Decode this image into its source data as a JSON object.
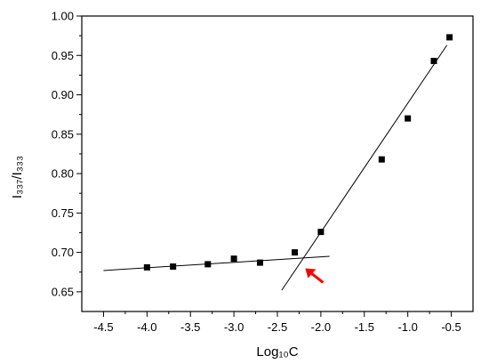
{
  "chart_data": {
    "type": "scatter",
    "xlabel": "Log₁₀C",
    "ylabel": "I₃₃₇/I₃₃₃",
    "xlim": [
      -4.75,
      -0.25
    ],
    "ylim": [
      0.625,
      1.0
    ],
    "x_ticks": [
      -4.5,
      -4.0,
      -3.5,
      -3.0,
      -2.5,
      -2.0,
      -1.5,
      -1.0,
      -0.5
    ],
    "x_tick_labels": [
      "-4.5",
      "-4.0",
      "-3.5",
      "-3.0",
      "-2.5",
      "-2.0",
      "-1.5",
      "-1.0",
      "-0.5"
    ],
    "y_ticks": [
      0.65,
      0.7,
      0.75,
      0.8,
      0.85,
      0.9,
      0.95,
      1.0
    ],
    "y_tick_labels": [
      "0.65",
      "0.70",
      "0.75",
      "0.80",
      "0.85",
      "0.90",
      "0.95",
      "1.00"
    ],
    "grid": false,
    "series": [
      {
        "marker": "square",
        "color": "#000000",
        "points": [
          {
            "x": -4.0,
            "y": 0.681
          },
          {
            "x": -3.7,
            "y": 0.682
          },
          {
            "x": -3.3,
            "y": 0.685
          },
          {
            "x": -3.0,
            "y": 0.692
          },
          {
            "x": -2.7,
            "y": 0.687
          },
          {
            "x": -2.3,
            "y": 0.7
          },
          {
            "x": -2.0,
            "y": 0.726
          },
          {
            "x": -1.3,
            "y": 0.818
          },
          {
            "x": -1.0,
            "y": 0.87
          },
          {
            "x": -0.7,
            "y": 0.943
          },
          {
            "x": -0.52,
            "y": 0.973
          }
        ]
      }
    ],
    "fit_lines": [
      {
        "from": {
          "x": -4.5,
          "y": 0.677
        },
        "to": {
          "x": -1.9,
          "y": 0.695
        },
        "color": "#000000"
      },
      {
        "from": {
          "x": -2.45,
          "y": 0.652
        },
        "to": {
          "x": -0.55,
          "y": 0.963
        },
        "color": "#000000"
      }
    ],
    "annotation": {
      "type": "arrow",
      "color": "#ff0000",
      "points_to": {
        "x": -2.2,
        "y": 0.69
      }
    }
  }
}
